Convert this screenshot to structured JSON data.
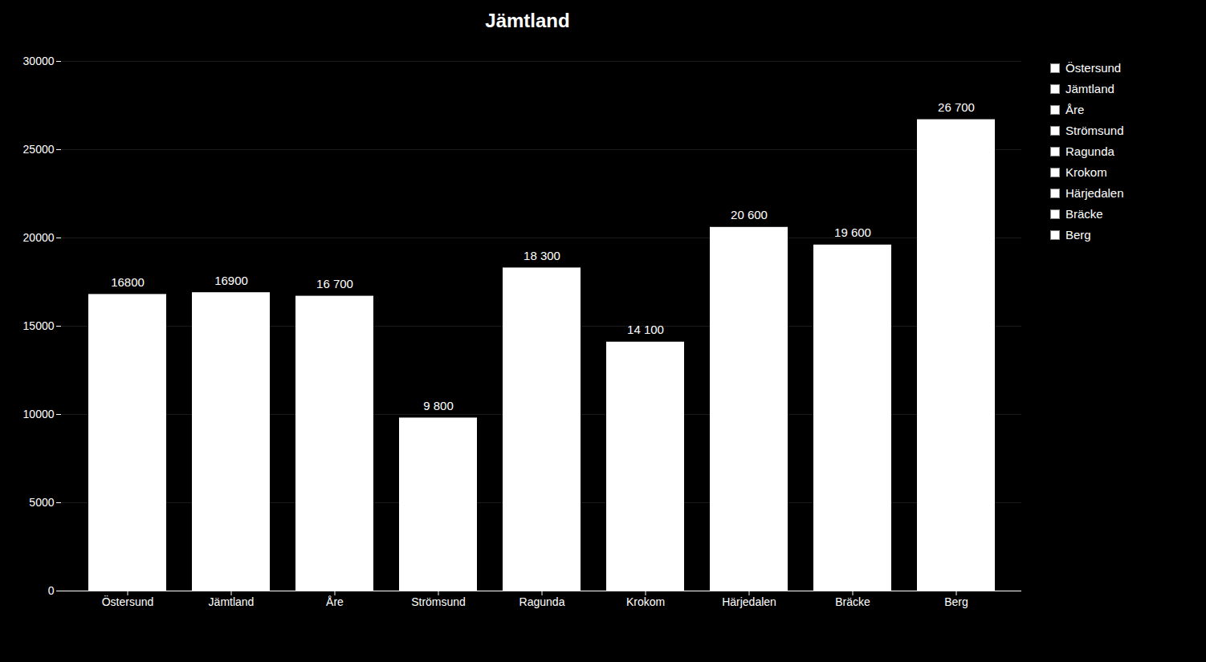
{
  "chart_data": {
    "type": "bar",
    "title": "Jämtland",
    "categories": [
      "Östersund",
      "Jämtland",
      "Åre",
      "Strömsund",
      "Ragunda",
      "Krokom",
      "Härjedalen",
      "Bräcke",
      "Berg"
    ],
    "values": [
      16800,
      16900,
      16700,
      9800,
      18300,
      14100,
      20600,
      19600,
      26700
    ],
    "value_labels": [
      "16800",
      "16900",
      "16 700",
      "9 800",
      "18 300",
      "14 100",
      "20 600",
      "19 600",
      "26 700"
    ],
    "data_labels": true,
    "colors": [
      "#ffffff",
      "#ffffff",
      "#ffffff",
      "#ffffff",
      "#ffffff",
      "#ffffff",
      "#ffffff",
      "#ffffff",
      "#ffffff"
    ],
    "ylim": [
      0,
      30000
    ],
    "yticks": [
      0,
      5000,
      10000,
      15000,
      20000,
      25000,
      30000
    ],
    "grid": true,
    "legend": "right"
  }
}
